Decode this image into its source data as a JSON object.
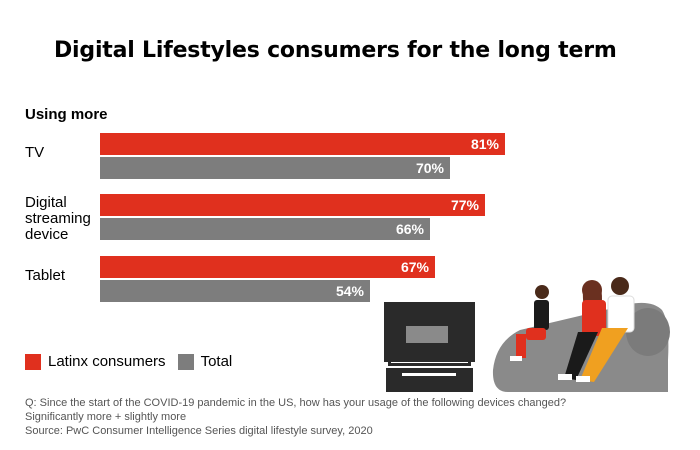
{
  "title": "Digital Lifestyles consumers for the long term",
  "subtitle": "Using more",
  "colors": {
    "latinx": "#E0301E",
    "total": "#7D7D7D"
  },
  "chart_data": {
    "type": "bar",
    "orientation": "horizontal",
    "categories": [
      "TV",
      "Digital\nstreaming\ndevice",
      "Tablet"
    ],
    "series": [
      {
        "name": "Latinx consumers",
        "values": [
          81,
          77,
          67
        ],
        "labels": [
          "81%",
          "77%",
          "67%"
        ]
      },
      {
        "name": "Total",
        "values": [
          70,
          66,
          54
        ],
        "labels": [
          "70%",
          "66%",
          "54%"
        ]
      }
    ],
    "unit": "%",
    "xlim": [
      0,
      100
    ],
    "grid": false,
    "legend": "bottom-left"
  },
  "legend": {
    "latinx_label": "Latinx consumers",
    "total_label": "Total"
  },
  "footnote": {
    "question": "Q: Since the start of the COVID-19 pandemic in the US, how has your usage of the following devices changed?",
    "note": "Significantly more + slightly more",
    "source": "Source: PwC Consumer Intelligence Series digital lifestyle survey, 2020"
  }
}
